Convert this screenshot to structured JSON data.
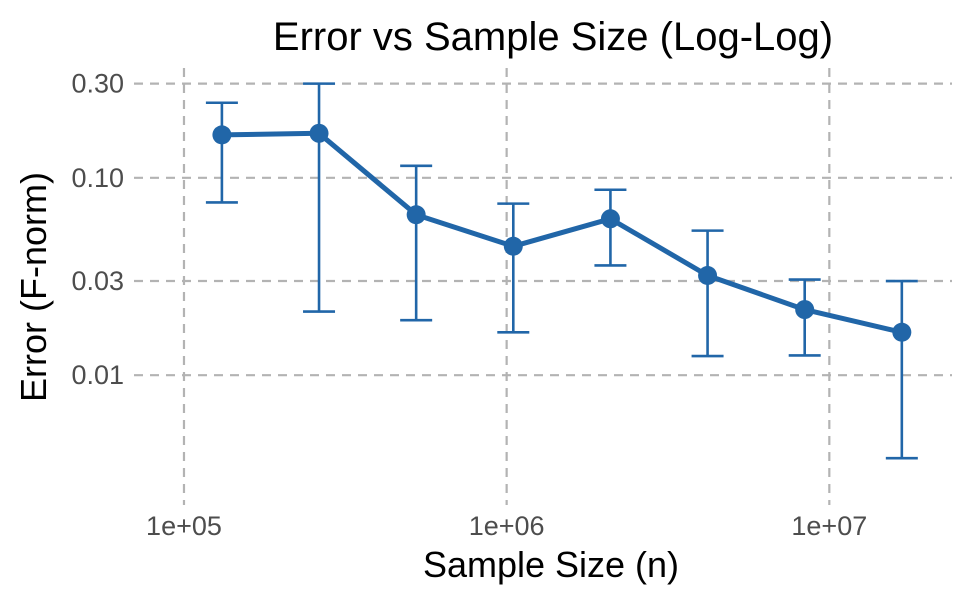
{
  "chart_data": {
    "type": "line",
    "title": "Error vs Sample Size (Log-Log)",
    "xlabel": "Sample Size (n)",
    "ylabel": "Error (F-norm)",
    "x_scale": "log",
    "y_scale": "log",
    "xlim": [
      70000,
      24000000
    ],
    "ylim": [
      0.0022,
      0.36
    ],
    "grid": true,
    "legend": "none",
    "x_ticks": [
      {
        "value": 100000,
        "label": "1e+05"
      },
      {
        "value": 1000000,
        "label": "1e+06"
      },
      {
        "value": 10000000,
        "label": "1e+07"
      }
    ],
    "y_ticks": [
      {
        "value": 0.3,
        "label": "0.30"
      },
      {
        "value": 0.1,
        "label": "0.10"
      },
      {
        "value": 0.03,
        "label": "0.03"
      },
      {
        "value": 0.01,
        "label": "0.01"
      }
    ],
    "series": [
      {
        "color": "#2166a8",
        "points": [
          {
            "x": 131072,
            "y": 0.165,
            "y_low": 0.075,
            "y_high": 0.24
          },
          {
            "x": 262144,
            "y": 0.168,
            "y_low": 0.021,
            "y_high": 0.3
          },
          {
            "x": 524288,
            "y": 0.065,
            "y_low": 0.019,
            "y_high": 0.115
          },
          {
            "x": 1048576,
            "y": 0.045,
            "y_low": 0.0165,
            "y_high": 0.074
          },
          {
            "x": 2097152,
            "y": 0.062,
            "y_low": 0.036,
            "y_high": 0.087
          },
          {
            "x": 4194304,
            "y": 0.032,
            "y_low": 0.0125,
            "y_high": 0.054
          },
          {
            "x": 8388608,
            "y": 0.0215,
            "y_low": 0.0126,
            "y_high": 0.0305
          },
          {
            "x": 16777216,
            "y": 0.0165,
            "y_low": 0.0038,
            "y_high": 0.03
          }
        ]
      }
    ]
  }
}
